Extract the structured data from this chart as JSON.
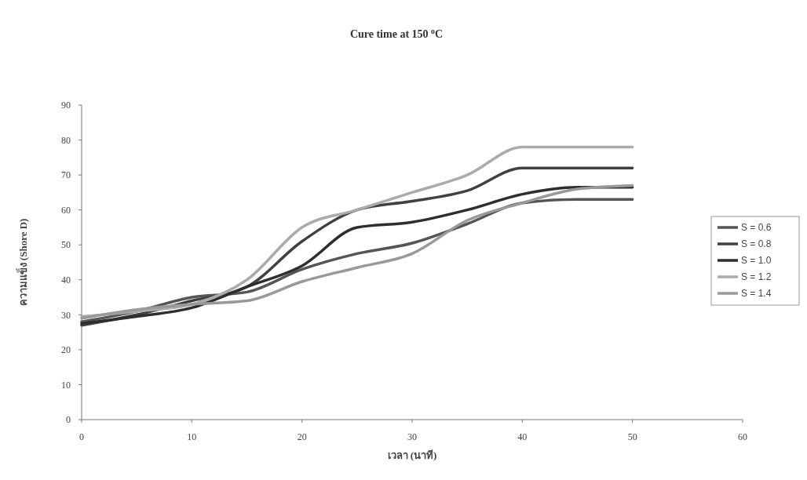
{
  "chart_data": {
    "type": "line",
    "title": "Cure time at 150 $^{o}$C",
    "xlabel": "เวลา (นาที)",
    "ylabel": "ความแข็ง (Shore D)",
    "x": [
      0,
      5,
      10,
      15,
      20,
      25,
      30,
      35,
      40,
      45,
      50
    ],
    "series": [
      {
        "name": "S = 0.6",
        "color": "#555555",
        "values": [
          28,
          31,
          35,
          36.5,
          43,
          47.5,
          50.5,
          56,
          62,
          63,
          63
        ]
      },
      {
        "name": "S = 0.8",
        "color": "#404040",
        "values": [
          27,
          30,
          34,
          38,
          51,
          60,
          62.5,
          65.5,
          72,
          72,
          72
        ]
      },
      {
        "name": "S = 1.0",
        "color": "#2e2e2e",
        "values": [
          27.5,
          29.5,
          32,
          38,
          44,
          55,
          56.5,
          60,
          64.5,
          66.5,
          66.5
        ]
      },
      {
        "name": "S = 1.2",
        "color": "#ababab",
        "values": [
          29.5,
          31,
          33,
          40,
          55,
          60,
          65,
          70,
          78,
          78,
          78
        ]
      },
      {
        "name": "S = 1.4",
        "color": "#999999",
        "values": [
          29,
          31.5,
          33,
          34,
          39.5,
          43.5,
          47.5,
          57,
          62,
          66,
          67
        ]
      }
    ],
    "xlim": [
      0,
      60
    ],
    "xticks": [
      0,
      10,
      20,
      30,
      40,
      50,
      60
    ],
    "ylim": [
      0,
      90
    ],
    "yticks": [
      0,
      10,
      20,
      30,
      40,
      50,
      60,
      70,
      80,
      90
    ],
    "grid": false,
    "legend": "right",
    "line_style": "solid"
  }
}
